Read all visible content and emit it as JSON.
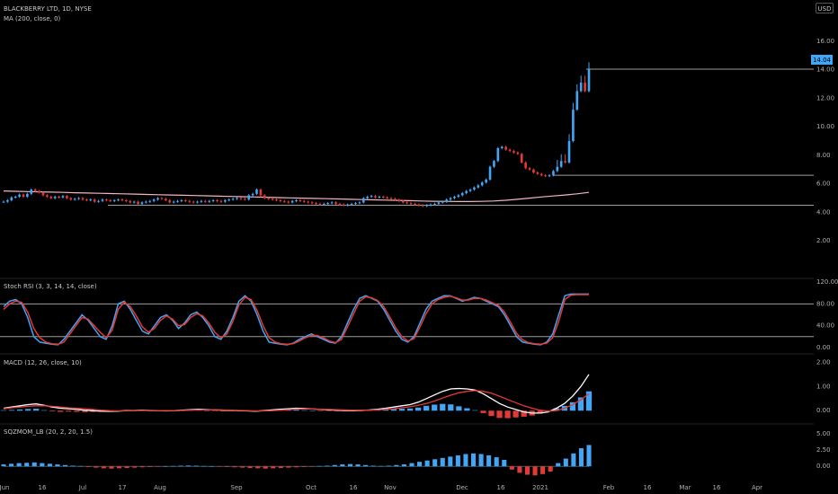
{
  "header": {
    "symbol_title": "BLACKBERRY LTD, 1D, NYSE",
    "ma_title": "MA (200, close, 0)",
    "currency": "USD"
  },
  "price_label": "14.04",
  "chart_data": [
    {
      "type": "candlestick",
      "name": "price-pane",
      "yaxis_ticks": [
        "16.00",
        "14.00",
        "12.00",
        "10.00",
        "8.00",
        "6.00",
        "4.00",
        "2.00"
      ],
      "ylim": [
        0,
        17
      ],
      "horizontal_lines": [
        14.04,
        6.6,
        4.5
      ],
      "x_ticks": [
        "Jun",
        "16",
        "Jul",
        "17",
        "Aug",
        "Sep",
        "Oct",
        "16",
        "Nov",
        "Dec",
        "16",
        "2021",
        "Feb",
        "16",
        "Mar",
        "16",
        "Apr"
      ],
      "candles_close": [
        4.75,
        4.85,
        5.05,
        5.1,
        5.25,
        5.1,
        5.3,
        5.6,
        5.5,
        5.4,
        5.2,
        5.1,
        5.0,
        5.1,
        5.05,
        5.15,
        5.0,
        4.9,
        4.95,
        5.0,
        4.9,
        4.85,
        4.9,
        4.75,
        4.8,
        4.9,
        4.85,
        4.8,
        4.85,
        4.9,
        4.85,
        4.8,
        4.7,
        4.75,
        4.6,
        4.7,
        4.75,
        4.8,
        4.9,
        5.0,
        4.95,
        4.85,
        4.7,
        4.75,
        4.8,
        4.85,
        4.8,
        4.75,
        4.7,
        4.75,
        4.8,
        4.75,
        4.8,
        4.85,
        4.8,
        4.75,
        4.85,
        4.9,
        4.95,
        5.0,
        4.95,
        4.9,
        5.2,
        5.3,
        5.6,
        5.2,
        5.0,
        4.95,
        4.9,
        4.85,
        4.8,
        4.75,
        4.7,
        4.8,
        4.85,
        4.8,
        4.75,
        4.7,
        4.65,
        4.6,
        4.55,
        4.6,
        4.65,
        4.7,
        4.6,
        4.55,
        4.5,
        4.55,
        4.6,
        4.65,
        4.7,
        5.0,
        5.1,
        5.15,
        5.05,
        5.1,
        5.05,
        5.0,
        4.95,
        4.9,
        4.8,
        4.7,
        4.65,
        4.6,
        4.55,
        4.5,
        4.45,
        4.5,
        4.55,
        4.6,
        4.7,
        4.75,
        4.9,
        5.0,
        5.1,
        5.2,
        5.35,
        5.5,
        5.6,
        5.75,
        5.9,
        6.1,
        6.3,
        7.2,
        7.6,
        8.5,
        8.6,
        8.4,
        8.3,
        8.2,
        8.1,
        7.5,
        7.1,
        7.0,
        6.8,
        6.7,
        6.6,
        6.55,
        6.6,
        6.9,
        7.2,
        7.6,
        7.5,
        9.0,
        11.2,
        12.5,
        13.1,
        12.5,
        14.04
      ],
      "ma200": [
        5.5,
        5.48,
        5.46,
        5.44,
        5.42,
        5.4,
        5.38,
        5.36,
        5.34,
        5.32,
        5.3,
        5.28,
        5.26,
        5.24,
        5.22,
        5.2,
        5.18,
        5.16,
        5.14,
        5.12,
        5.1,
        5.08,
        5.06,
        5.04,
        5.02,
        5.0,
        4.98,
        4.96,
        4.94,
        4.92,
        4.9,
        4.88,
        4.86,
        4.84,
        4.82,
        4.8,
        4.78,
        4.77,
        4.76,
        4.76,
        4.77,
        4.8,
        4.85,
        4.92,
        5.0,
        5.08,
        5.15,
        5.22,
        5.3,
        5.4
      ],
      "ma200_color": "#f4b6c2",
      "up_color": "#42a5f5",
      "down_color": "#e53935"
    },
    {
      "type": "line",
      "name": "stoch-rsi",
      "title": "Stoch RSI (3, 3, 14, 14, close)",
      "yaxis_ticks": [
        "120.00",
        "80.00",
        "40.00",
        "0.00"
      ],
      "ylim": [
        -5,
        120
      ],
      "bands": [
        80,
        20
      ],
      "series": [
        {
          "color": "#42a5f5",
          "values": [
            75,
            85,
            88,
            80,
            55,
            20,
            10,
            8,
            6,
            5,
            15,
            30,
            45,
            60,
            50,
            35,
            20,
            15,
            40,
            80,
            85,
            70,
            50,
            30,
            25,
            40,
            55,
            60,
            50,
            35,
            45,
            60,
            65,
            55,
            40,
            20,
            15,
            30,
            55,
            85,
            95,
            85,
            60,
            30,
            10,
            8,
            6,
            5,
            8,
            15,
            20,
            25,
            20,
            15,
            10,
            8,
            20,
            45,
            70,
            90,
            95,
            90,
            85,
            70,
            50,
            30,
            15,
            10,
            20,
            45,
            70,
            85,
            90,
            95,
            95,
            90,
            85,
            88,
            92,
            90,
            85,
            80,
            75,
            60,
            40,
            20,
            10,
            8,
            6,
            5,
            10,
            25,
            60,
            95,
            98,
            98,
            98,
            98
          ]
        },
        {
          "color": "#e53935",
          "values": [
            70,
            80,
            85,
            83,
            65,
            35,
            18,
            10,
            7,
            6,
            10,
            25,
            40,
            55,
            52,
            40,
            28,
            18,
            32,
            70,
            83,
            75,
            58,
            38,
            28,
            35,
            50,
            58,
            52,
            40,
            42,
            55,
            62,
            58,
            45,
            28,
            18,
            25,
            48,
            78,
            92,
            88,
            68,
            40,
            18,
            10,
            7,
            6,
            7,
            12,
            18,
            22,
            22,
            18,
            12,
            9,
            15,
            38,
            62,
            85,
            93,
            91,
            86,
            75,
            56,
            36,
            20,
            12,
            16,
            38,
            62,
            80,
            88,
            92,
            94,
            91,
            87,
            87,
            90,
            90,
            87,
            82,
            77,
            65,
            46,
            26,
            14,
            9,
            7,
            6,
            8,
            18,
            48,
            88,
            96,
            97,
            97,
            97
          ]
        }
      ]
    },
    {
      "type": "histogram-line",
      "name": "macd",
      "title": "MACD (12, 26, close, 10)",
      "yaxis_ticks": [
        "2.00",
        "1.00",
        "0.00"
      ],
      "ylim": [
        -0.4,
        2.2
      ],
      "series": [
        {
          "name": "macd",
          "color": "#ffffff",
          "values": [
            0.1,
            0.15,
            0.2,
            0.25,
            0.28,
            0.22,
            0.15,
            0.1,
            0.08,
            0.05,
            0.02,
            0.0,
            -0.02,
            -0.03,
            -0.02,
            0.0,
            0.01,
            0.02,
            0.01,
            0.0,
            -0.01,
            0.0,
            0.02,
            0.04,
            0.06,
            0.05,
            0.03,
            0.02,
            0.01,
            0.0,
            -0.01,
            -0.02,
            0.0,
            0.03,
            0.06,
            0.08,
            0.1,
            0.09,
            0.07,
            0.05,
            0.03,
            0.02,
            0.01,
            0.0,
            0.01,
            0.03,
            0.06,
            0.1,
            0.15,
            0.2,
            0.25,
            0.35,
            0.5,
            0.65,
            0.8,
            0.9,
            0.92,
            0.9,
            0.85,
            0.7,
            0.5,
            0.3,
            0.15,
            0.05,
            -0.05,
            -0.1,
            -0.1,
            -0.05,
            0.1,
            0.3,
            0.6,
            1.0,
            1.5
          ]
        },
        {
          "name": "signal",
          "color": "#e53935",
          "values": [
            0.08,
            0.12,
            0.15,
            0.18,
            0.2,
            0.2,
            0.18,
            0.15,
            0.12,
            0.1,
            0.08,
            0.05,
            0.02,
            0.0,
            -0.01,
            -0.01,
            0.0,
            0.01,
            0.01,
            0.0,
            0.0,
            0.0,
            0.01,
            0.02,
            0.03,
            0.04,
            0.04,
            0.03,
            0.02,
            0.01,
            0.0,
            -0.01,
            -0.01,
            0.0,
            0.02,
            0.04,
            0.06,
            0.07,
            0.07,
            0.06,
            0.05,
            0.04,
            0.03,
            0.02,
            0.02,
            0.02,
            0.03,
            0.05,
            0.08,
            0.12,
            0.16,
            0.22,
            0.3,
            0.4,
            0.52,
            0.64,
            0.74,
            0.8,
            0.83,
            0.8,
            0.72,
            0.6,
            0.46,
            0.33,
            0.2,
            0.1,
            0.02,
            -0.02,
            0.0,
            0.1,
            0.25,
            0.45,
            0.7
          ]
        },
        {
          "name": "histogram",
          "values": [
            0.02,
            0.03,
            0.05,
            0.07,
            0.08,
            0.02,
            -0.03,
            -0.05,
            -0.04,
            -0.05,
            -0.06,
            -0.05,
            -0.04,
            -0.03,
            -0.01,
            0.01,
            0.01,
            0.01,
            0.0,
            0.0,
            -0.01,
            0.0,
            0.01,
            0.02,
            0.03,
            0.01,
            -0.01,
            -0.01,
            -0.01,
            -0.01,
            -0.01,
            -0.01,
            0.01,
            0.03,
            0.04,
            0.04,
            0.04,
            0.02,
            0.0,
            -0.01,
            -0.02,
            -0.02,
            -0.02,
            -0.02,
            -0.01,
            0.01,
            0.03,
            0.05,
            0.07,
            0.08,
            0.09,
            0.13,
            0.2,
            0.25,
            0.28,
            0.26,
            0.18,
            0.1,
            0.02,
            -0.1,
            -0.22,
            -0.3,
            -0.31,
            -0.28,
            -0.25,
            -0.2,
            -0.12,
            -0.03,
            0.1,
            0.2,
            0.35,
            0.55,
            0.8
          ]
        }
      ],
      "up_color": "#42a5f5",
      "down_color": "#e53935"
    },
    {
      "type": "histogram",
      "name": "sqzmom",
      "title": "SQZMOM_LB (20, 2, 20, 1.5)",
      "yaxis_ticks": [
        "5.00",
        "2.50",
        "0.00"
      ],
      "ylim": [
        -1.5,
        6.0
      ],
      "values": [
        0.3,
        0.4,
        0.5,
        0.55,
        0.6,
        0.5,
        0.4,
        0.3,
        0.2,
        0.1,
        0.05,
        -0.1,
        -0.2,
        -0.3,
        -0.35,
        -0.3,
        -0.25,
        -0.2,
        -0.15,
        -0.1,
        -0.05,
        0.0,
        0.05,
        0.1,
        0.12,
        0.1,
        0.05,
        0.0,
        -0.05,
        -0.1,
        -0.15,
        -0.2,
        -0.25,
        -0.3,
        -0.35,
        -0.3,
        -0.25,
        -0.2,
        -0.15,
        -0.1,
        -0.05,
        0.05,
        0.1,
        0.2,
        0.3,
        0.35,
        0.3,
        0.2,
        0.1,
        0.05,
        0.1,
        0.2,
        0.3,
        0.5,
        0.7,
        0.9,
        1.1,
        1.3,
        1.5,
        1.7,
        1.9,
        2.0,
        1.9,
        1.7,
        1.4,
        1.0,
        -0.5,
        -1.0,
        -1.3,
        -1.4,
        -1.2,
        -0.8,
        0.5,
        1.2,
        2.0,
        2.8,
        3.3
      ]
    }
  ],
  "colors": {
    "background": "#000000",
    "grid_line": "#9e9e9e",
    "text": "#b0b0b0"
  }
}
